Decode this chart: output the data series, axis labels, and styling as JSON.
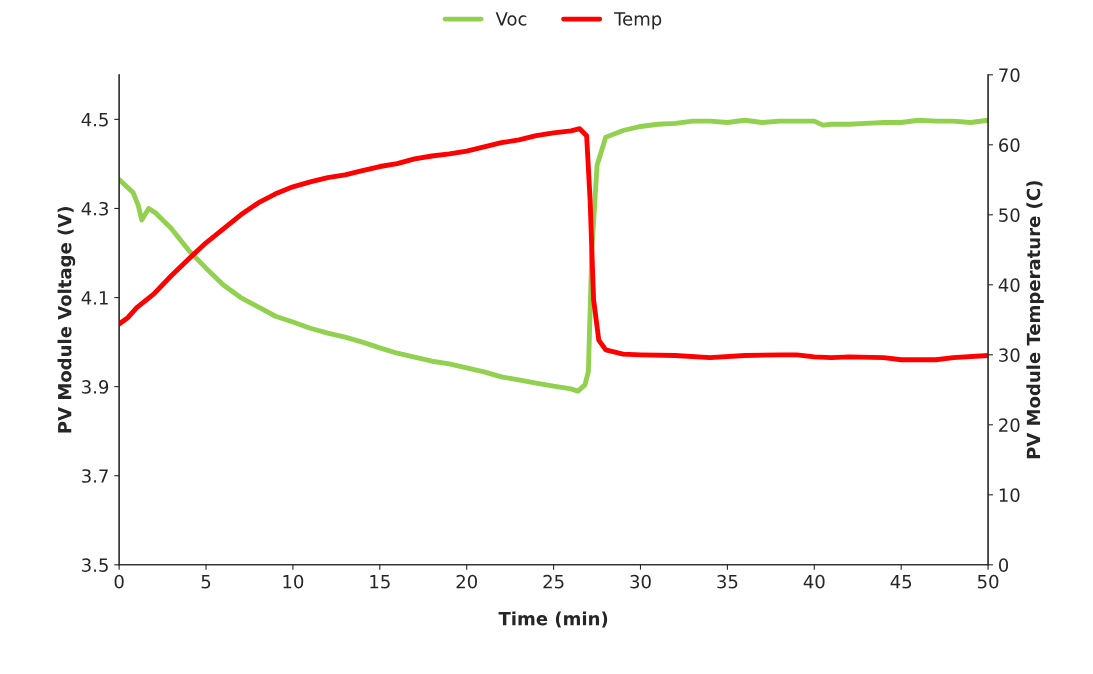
{
  "chart_data": {
    "type": "line",
    "xlabel": "Time (min)",
    "ylabel": "PV Module Voltage (V)",
    "y2label": "PV Module Temperature (C)",
    "xlim": [
      0,
      50
    ],
    "xticks": [
      0,
      5,
      10,
      15,
      20,
      25,
      30,
      35,
      40,
      45,
      50
    ],
    "ylim": [
      3.5,
      4.6
    ],
    "yticks": [
      3.5,
      3.7,
      3.9,
      4.1,
      4.3,
      4.5
    ],
    "y2lim": [
      0,
      70
    ],
    "y2ticks": [
      0,
      10,
      20,
      30,
      40,
      50,
      60,
      70
    ],
    "grid": false,
    "legend": "top",
    "marker": "none",
    "line_style": "solid",
    "series": [
      {
        "name": "Voc",
        "color": "#92d050",
        "x": [
          0,
          0.8,
          1.1,
          1.3,
          1.7,
          2.1,
          3,
          4,
          5,
          6,
          7,
          8,
          9,
          10,
          11,
          12,
          13,
          14,
          15,
          16,
          17,
          18,
          19,
          20,
          21,
          22,
          23,
          24,
          25,
          26,
          26.4,
          26.8,
          27.0,
          27.2,
          27.5,
          28,
          29,
          30,
          31,
          32,
          33,
          34,
          35,
          36,
          37,
          38,
          39,
          40,
          40.5,
          41,
          42,
          43,
          44,
          45,
          46,
          47,
          48,
          49,
          50
        ],
        "values": [
          4.365,
          4.336,
          4.307,
          4.274,
          4.3,
          4.29,
          4.255,
          4.206,
          4.166,
          4.128,
          4.1,
          4.079,
          4.058,
          4.045,
          4.031,
          4.02,
          4.011,
          4.0,
          3.987,
          3.975,
          3.966,
          3.957,
          3.951,
          3.942,
          3.933,
          3.922,
          3.915,
          3.908,
          3.901,
          3.895,
          3.89,
          3.904,
          3.933,
          4.206,
          4.397,
          4.46,
          4.475,
          4.484,
          4.489,
          4.491,
          4.496,
          4.496,
          4.493,
          4.498,
          4.493,
          4.496,
          4.496,
          4.496,
          4.487,
          4.489,
          4.489,
          4.491,
          4.493,
          4.493,
          4.498,
          4.496,
          4.496,
          4.493,
          4.498
        ]
      },
      {
        "name": "Temp",
        "color": "#ff0000",
        "axis": "y2",
        "x": [
          0,
          0.5,
          1,
          2,
          3,
          4,
          5,
          6,
          7,
          8,
          9,
          10,
          11,
          12,
          13,
          14,
          15,
          16,
          17,
          18,
          19,
          20,
          21,
          22,
          23,
          24,
          25,
          26,
          26.5,
          26.9,
          27.1,
          27.3,
          27.6,
          28,
          29,
          30,
          32,
          34,
          36,
          38,
          39,
          40,
          41,
          42,
          44,
          45,
          47,
          48,
          50
        ],
        "values": [
          34.4,
          35.3,
          36.7,
          38.7,
          41.3,
          43.7,
          46.0,
          48.0,
          50.0,
          51.7,
          53.0,
          54.0,
          54.7,
          55.3,
          55.7,
          56.3,
          56.9,
          57.3,
          58.0,
          58.4,
          58.7,
          59.1,
          59.7,
          60.3,
          60.7,
          61.3,
          61.7,
          62.0,
          62.3,
          61.3,
          52.1,
          37.9,
          32.1,
          30.7,
          30.1,
          30.0,
          29.9,
          29.6,
          29.9,
          30.0,
          30.0,
          29.7,
          29.6,
          29.7,
          29.6,
          29.3,
          29.3,
          29.6,
          29.9
        ]
      }
    ]
  }
}
